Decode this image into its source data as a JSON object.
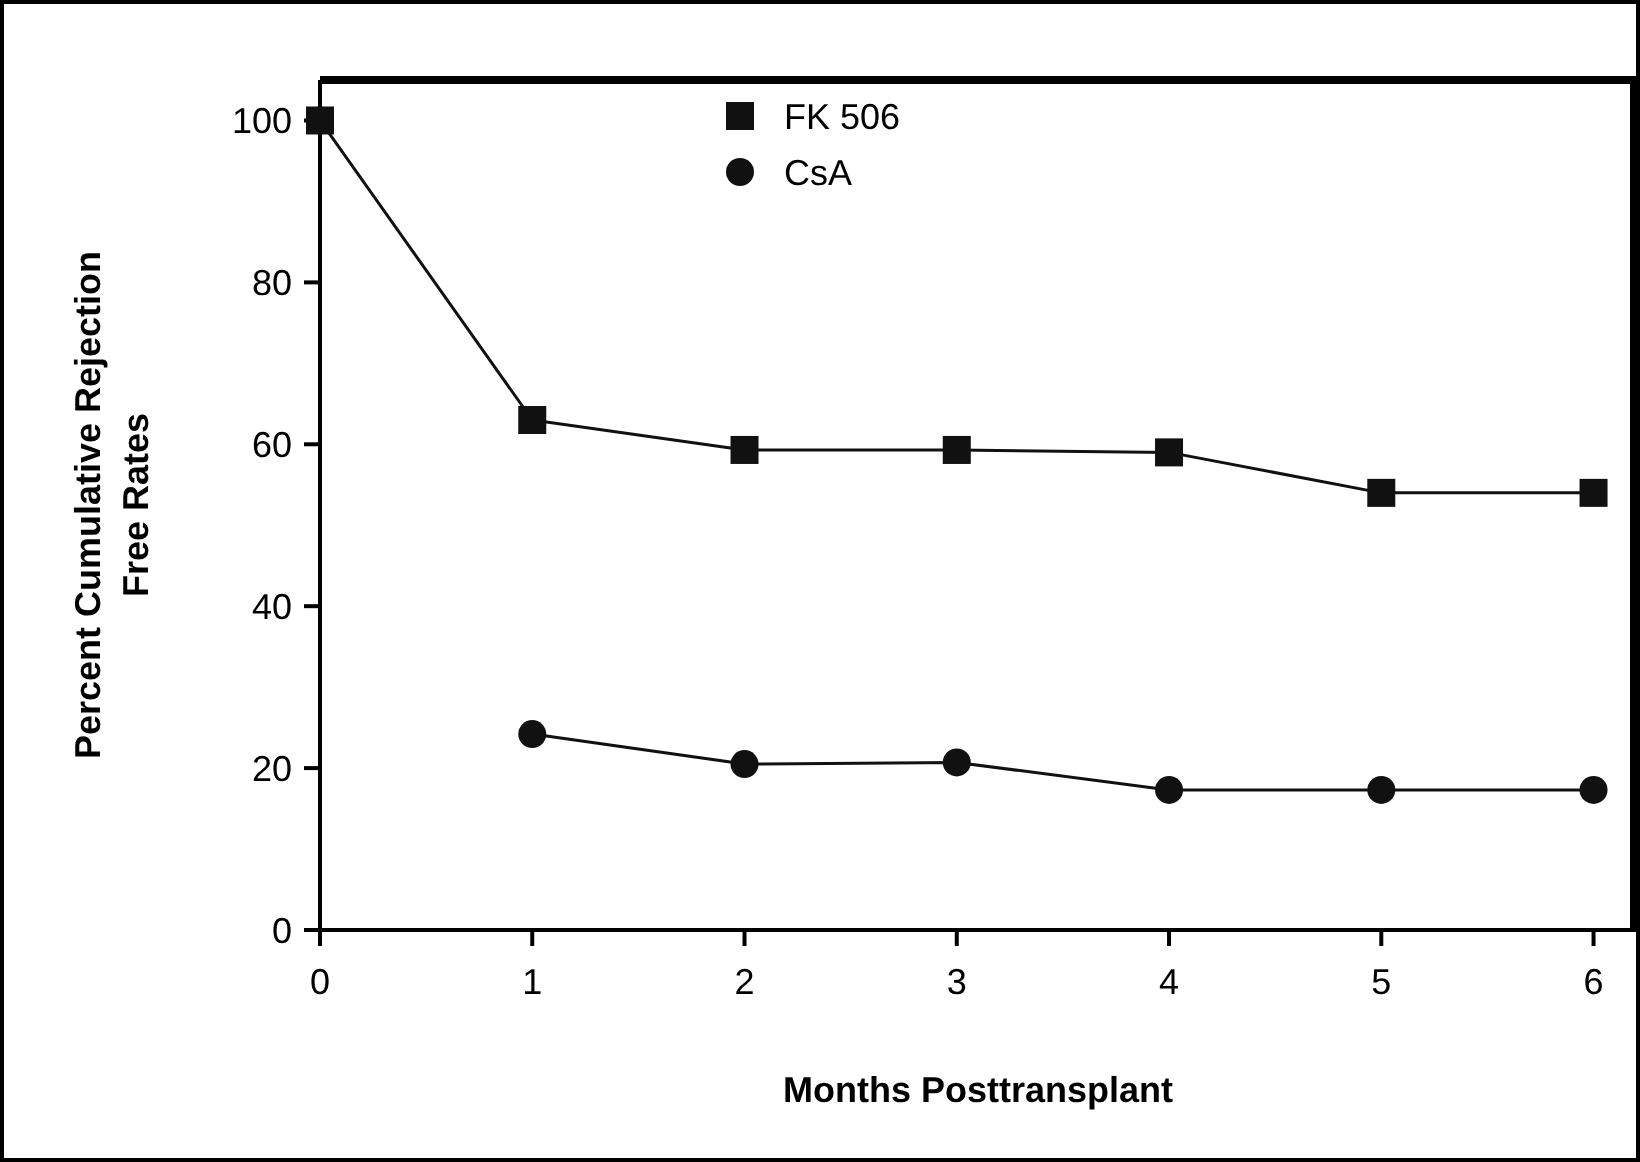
{
  "chart_data": {
    "type": "line",
    "xlabel": "Months Posttransplant",
    "ylabel": "Percent Cumulative Rejection\nFree Rates",
    "x": [
      0,
      1,
      2,
      3,
      4,
      5,
      6
    ],
    "xlim": [
      0,
      6.2
    ],
    "xticks": [
      0,
      1,
      2,
      3,
      4,
      5,
      6
    ],
    "ylim": [
      0,
      105
    ],
    "yticks": [
      0,
      20,
      40,
      60,
      80,
      100
    ],
    "grid": false,
    "legend": "top",
    "series": [
      {
        "name": "FK 506",
        "color": "#111111",
        "marker": "square",
        "values": [
          100,
          63,
          59.3,
          59.3,
          59,
          54,
          54
        ]
      },
      {
        "name": "CsA",
        "color": "#111111",
        "marker": "circle",
        "values": [
          null,
          24.2,
          20.5,
          20.7,
          17.3,
          17.3,
          17.3
        ]
      }
    ]
  }
}
